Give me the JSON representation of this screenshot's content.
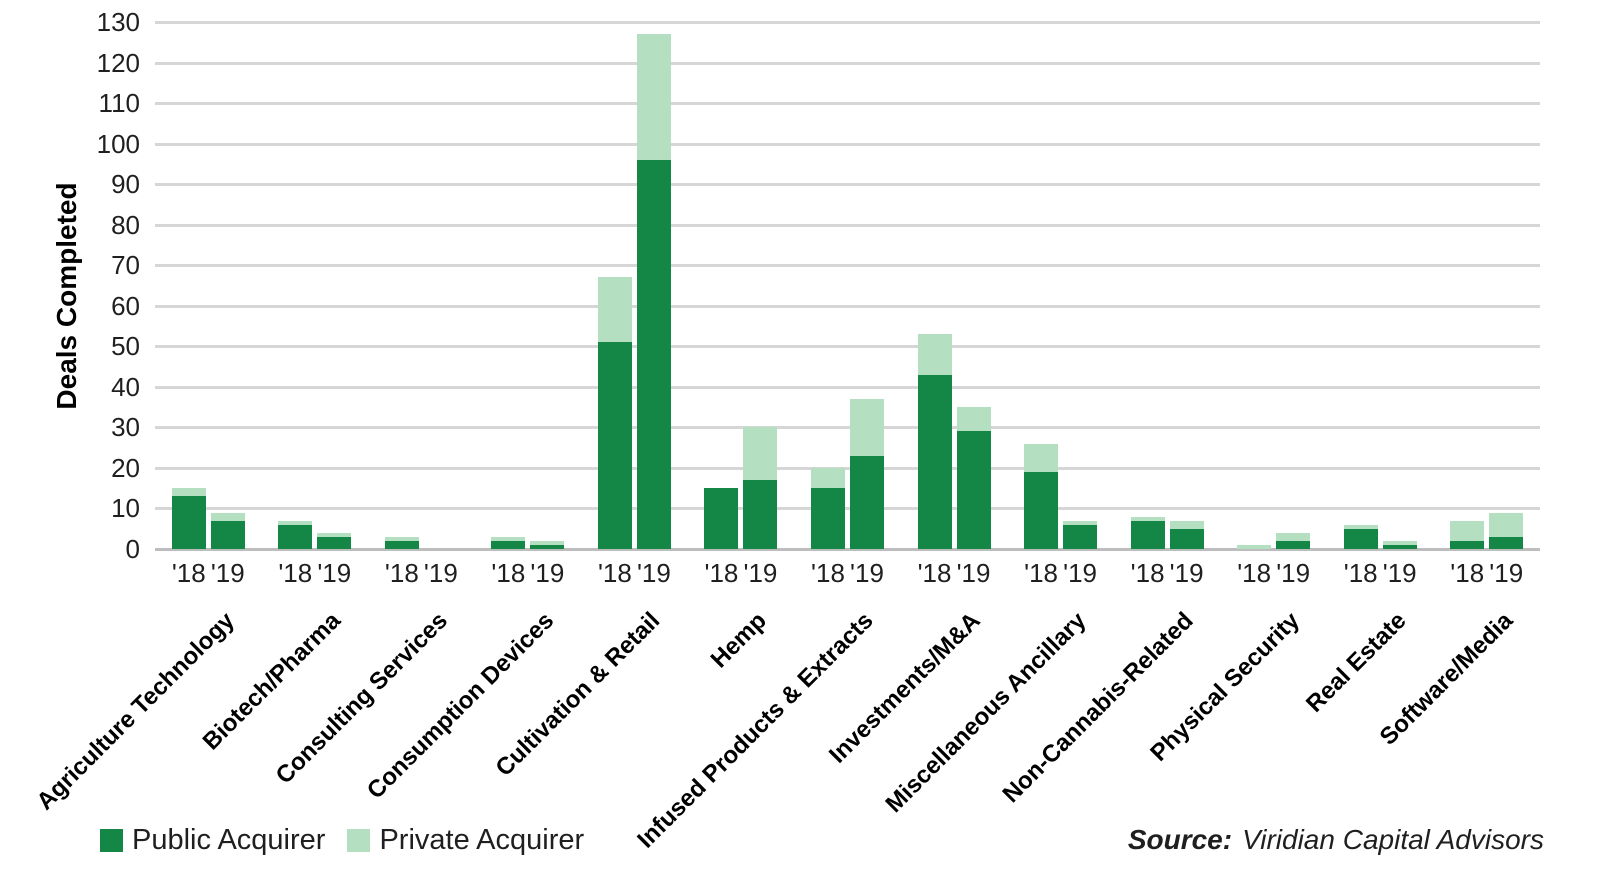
{
  "chart_data": {
    "type": "bar",
    "stacked": true,
    "ylabel": "Deals Completed",
    "ylim": [
      0,
      130
    ],
    "ytick_step": 10,
    "grid": true,
    "legend_position": "bottom-left",
    "categories": [
      "Agriculture Technology",
      "Biotech/Pharma",
      "Consulting Services",
      "Consumption Devices",
      "Cultivation & Retail",
      "Hemp",
      "Infused Products & Extracts",
      "Investments/M&A",
      "Miscellaneous Ancillary",
      "Non-Cannabis-Related",
      "Physical Security",
      "Real Estate",
      "Software/Media"
    ],
    "year_labels": [
      "'18",
      "'19"
    ],
    "series": [
      {
        "name": "Public Acquirer",
        "color": "#148746",
        "values": {
          "'18": [
            13,
            6,
            2,
            2,
            51,
            15,
            15,
            43,
            19,
            7,
            0,
            5,
            2
          ],
          "'19": [
            7,
            3,
            0,
            1,
            96,
            17,
            23,
            29,
            6,
            5,
            2,
            1,
            3
          ]
        }
      },
      {
        "name": "Private Acquirer",
        "color": "#b5dfc1",
        "values": {
          "'18": [
            2,
            1,
            1,
            1,
            16,
            0,
            5,
            10,
            7,
            1,
            1,
            1,
            5
          ],
          "'19": [
            2,
            1,
            0,
            1,
            31,
            13,
            14,
            6,
            1,
            2,
            2,
            1,
            6
          ]
        }
      }
    ]
  },
  "source": {
    "prefix": "Source:",
    "text": "Viridian Capital Advisors"
  }
}
